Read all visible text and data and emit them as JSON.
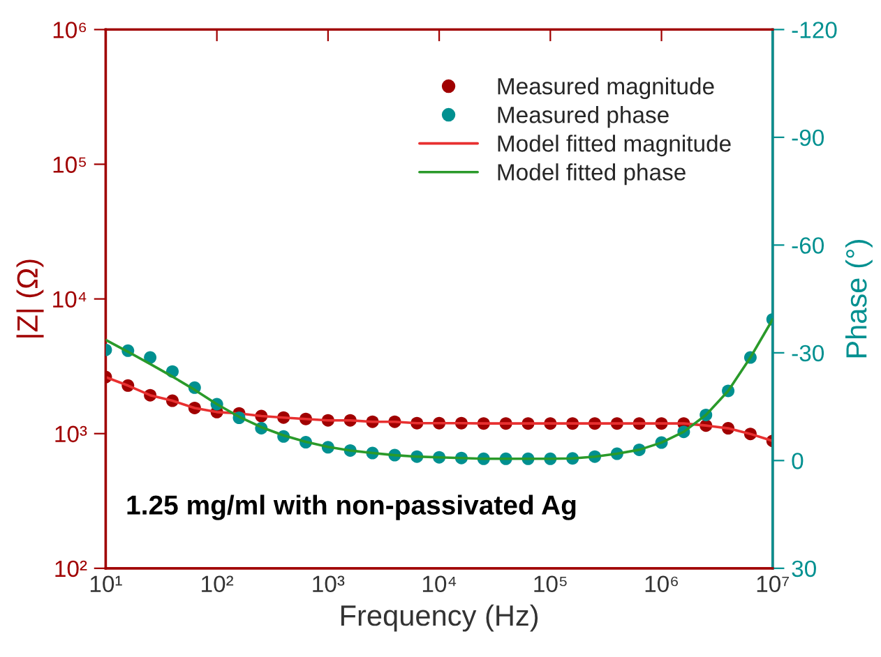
{
  "chart_data": {
    "type": "scatter",
    "xlabel": "Frequency (Hz)",
    "ylabel": "|Z| (Ω)",
    "y2label": "Phase (°)",
    "annotations": [
      "1.25 mg/ml with non-passivated Ag"
    ],
    "log": "xy",
    "x": [
      10,
      15.85,
      25.12,
      39.81,
      63.1,
      100,
      158.5,
      251.2,
      398.1,
      631,
      1000,
      1585,
      2512,
      3981,
      6310,
      10000,
      15850,
      25120,
      39810,
      63100,
      100000,
      158500,
      251200,
      398100,
      631000,
      1000000,
      1585000,
      2512000,
      3981000,
      6310000,
      10000000
    ],
    "xlim": [
      10,
      10000000
    ],
    "xticks": [
      {
        "value": 10,
        "label": "10¹"
      },
      {
        "value": 100,
        "label": "10²"
      },
      {
        "value": 1000,
        "label": "10³"
      },
      {
        "value": 10000,
        "label": "10⁴"
      },
      {
        "value": 100000,
        "label": "10⁵"
      },
      {
        "value": 1000000,
        "label": "10⁶"
      },
      {
        "value": 10000000,
        "label": "10⁷"
      }
    ],
    "ylim": [
      100,
      1000000
    ],
    "yticks": [
      {
        "value": 100,
        "label": "10²"
      },
      {
        "value": 1000,
        "label": "10³"
      },
      {
        "value": 10000,
        "label": "10⁴"
      },
      {
        "value": 100000,
        "label": "10⁵"
      },
      {
        "value": 1000000,
        "label": "10⁶"
      }
    ],
    "y2lim": [
      30,
      -120
    ],
    "y2ticks": [
      30,
      0,
      -30,
      -60,
      -90,
      -120
    ],
    "grid": false,
    "legend": "top right",
    "series": [
      {
        "name": "Measured magnitude",
        "marker": "circle",
        "color": "#a00000",
        "values": [
          2630,
          2275,
          1927,
          1755,
          1550,
          1445,
          1413,
          1350,
          1316,
          1285,
          1254,
          1254,
          1225,
          1225,
          1196,
          1196,
          1196,
          1190,
          1190,
          1190,
          1190,
          1190,
          1190,
          1190,
          1190,
          1190,
          1190,
          1148,
          1095,
          995,
          883
        ]
      },
      {
        "name": "Measured phase",
        "marker": "circle",
        "axis": "y2",
        "color": "#009090",
        "values": [
          -30.8,
          -30.6,
          -28.7,
          -24.8,
          -20.3,
          -15.7,
          -11.9,
          -9.0,
          -6.7,
          -5.1,
          -3.7,
          -2.8,
          -2.1,
          -1.5,
          -1.1,
          -0.9,
          -0.7,
          -0.5,
          -0.5,
          -0.5,
          -0.5,
          -0.6,
          -1.1,
          -1.9,
          -3.0,
          -5.0,
          -8.0,
          -12.7,
          -19.4,
          -28.7,
          -39.3
        ]
      },
      {
        "name": "Model fitted magnitude",
        "type": "line",
        "marker": "none",
        "line_style": "solid",
        "color": "#e83030",
        "values": [
          2630,
          2275,
          1927,
          1755,
          1550,
          1445,
          1413,
          1350,
          1316,
          1285,
          1254,
          1254,
          1225,
          1225,
          1196,
          1196,
          1196,
          1190,
          1190,
          1190,
          1190,
          1190,
          1190,
          1190,
          1190,
          1190,
          1190,
          1148,
          1095,
          995,
          883
        ]
      },
      {
        "name": "Model fitted phase",
        "type": "line",
        "marker": "none",
        "line_style": "solid",
        "axis": "y2",
        "color": "#2a9a2a",
        "values": [
          -33.6,
          -30.3,
          -26.9,
          -23.4,
          -19.7,
          -15.7,
          -12.2,
          -9.3,
          -7.0,
          -5.2,
          -3.8,
          -2.8,
          -2.1,
          -1.5,
          -1.1,
          -0.9,
          -0.7,
          -0.5,
          -0.5,
          -0.5,
          -0.5,
          -0.6,
          -1.1,
          -1.9,
          -3.0,
          -5.0,
          -8.0,
          -12.7,
          -19.4,
          -28.7,
          -39.3
        ]
      }
    ]
  }
}
